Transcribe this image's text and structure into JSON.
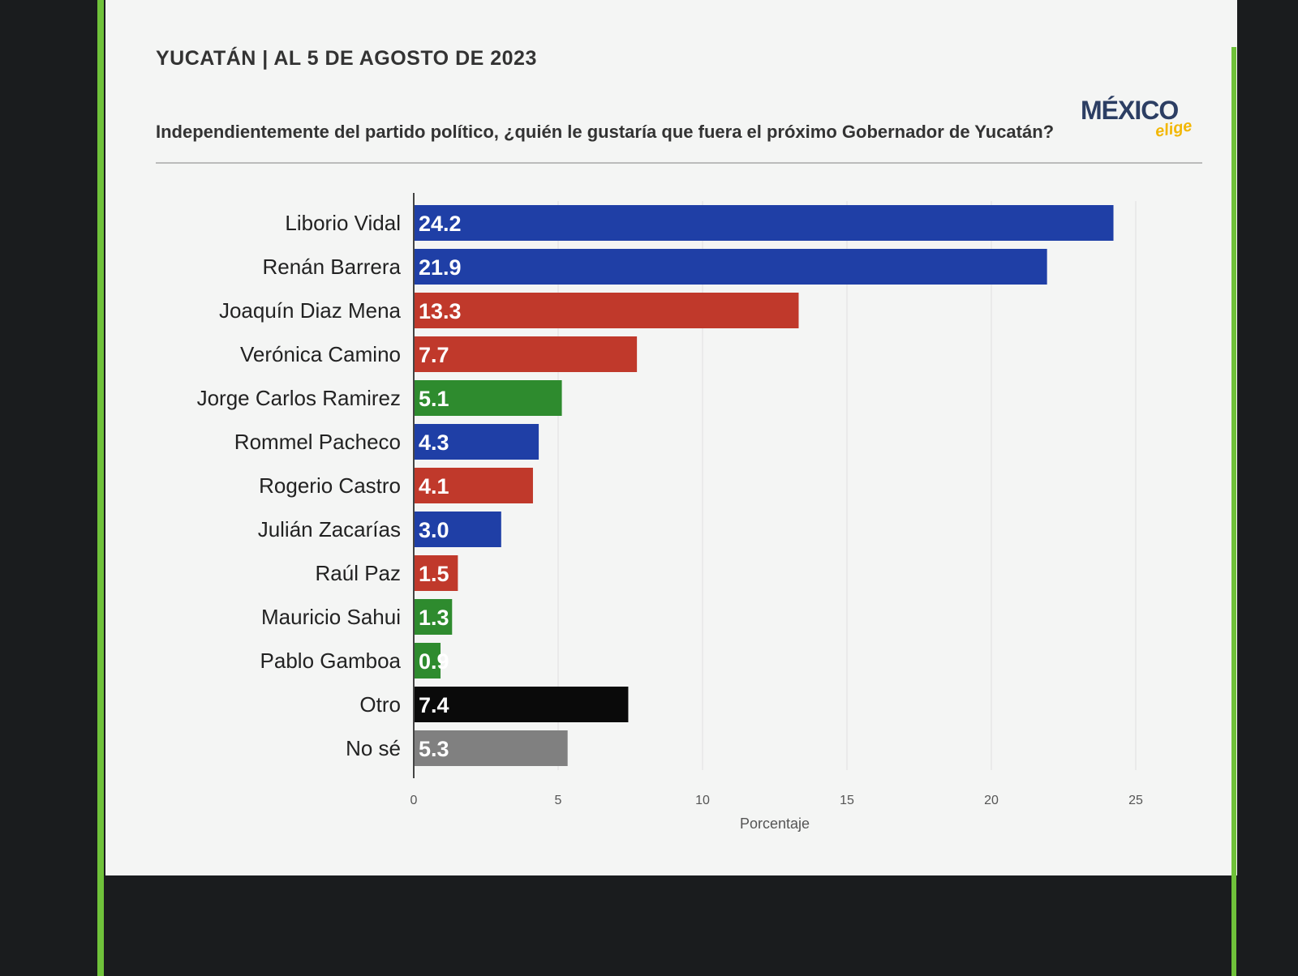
{
  "header": {
    "date_line": "YUCATÁN | AL 5 DE AGOSTO DE 2023",
    "question": "Independientemente del partido político, ¿quién le gustaría que fuera el próximo Gobernador de Yucatán?"
  },
  "logo": {
    "name": "MÉXICO",
    "sub": "elige"
  },
  "chart_data": {
    "type": "bar",
    "orientation": "horizontal",
    "categories": [
      "Liborio Vidal",
      "Renán Barrera",
      "Joaquín Diaz Mena",
      "Verónica Camino",
      "Jorge Carlos Ramirez",
      "Rommel Pacheco",
      "Rogerio Castro",
      "Julián Zacarías",
      "Raúl Paz",
      "Mauricio Sahui",
      "Pablo Gamboa",
      "Otro",
      "No sé"
    ],
    "values": [
      24.2,
      21.9,
      13.3,
      7.7,
      5.1,
      4.3,
      4.1,
      3.0,
      1.5,
      1.3,
      0.9,
      7.4,
      5.3
    ],
    "value_labels": [
      "24.2",
      "21.9",
      "13.3",
      "7.7",
      "5.1",
      "4.3",
      "4.1",
      "3.0",
      "1.5",
      "1.3",
      "0.9",
      "7.4",
      "5.3"
    ],
    "colors": [
      "#1f3fa6",
      "#1f3fa6",
      "#c0392b",
      "#c0392b",
      "#2e8b2e",
      "#1f3fa6",
      "#c0392b",
      "#1f3fa6",
      "#c0392b",
      "#2e8b2e",
      "#2e8b2e",
      "#0a0a0a",
      "#808080"
    ],
    "xlabel": "Porcentaje",
    "xlim": [
      0,
      25
    ],
    "xticks": [
      "0",
      "5",
      "10",
      "15",
      "20",
      "25"
    ],
    "grid": true
  }
}
